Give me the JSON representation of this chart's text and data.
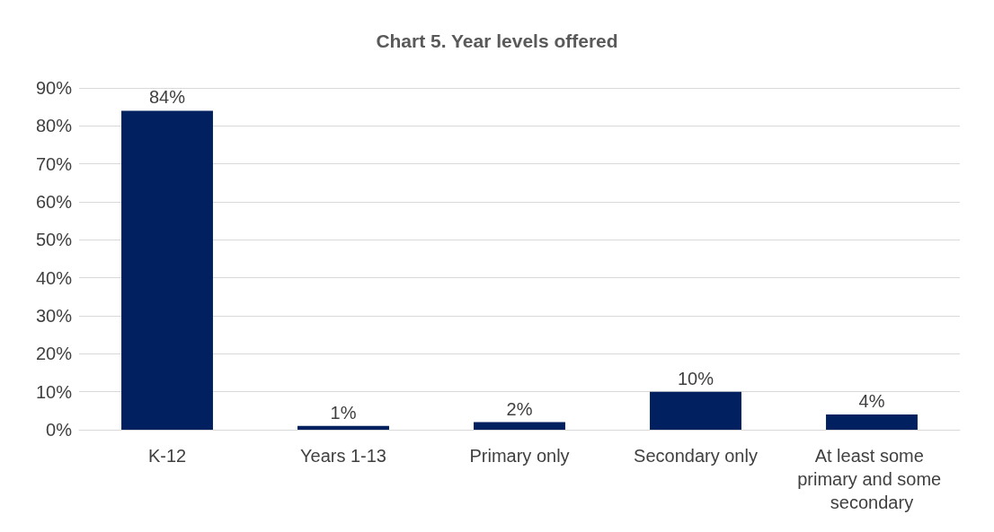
{
  "chart_data": {
    "type": "bar",
    "title": "Chart 5. Year levels offered",
    "categories": [
      "K-12",
      "Years 1-13",
      "Primary only",
      "Secondary only",
      "At least some primary and some secondary"
    ],
    "values": [
      84,
      1,
      2,
      10,
      4
    ],
    "value_labels": [
      "84%",
      "1%",
      "2%",
      "10%",
      "4%"
    ],
    "color": "#002060",
    "ylim": [
      0,
      90
    ],
    "yticks": [
      {
        "value": 0,
        "label": "0%"
      },
      {
        "value": 10,
        "label": "10%"
      },
      {
        "value": 20,
        "label": "20%"
      },
      {
        "value": 30,
        "label": "30%"
      },
      {
        "value": 40,
        "label": "40%"
      },
      {
        "value": 50,
        "label": "50%"
      },
      {
        "value": 60,
        "label": "60%"
      },
      {
        "value": 70,
        "label": "70%"
      },
      {
        "value": 80,
        "label": "80%"
      },
      {
        "value": 90,
        "label": "90%"
      }
    ],
    "grid": "y"
  }
}
